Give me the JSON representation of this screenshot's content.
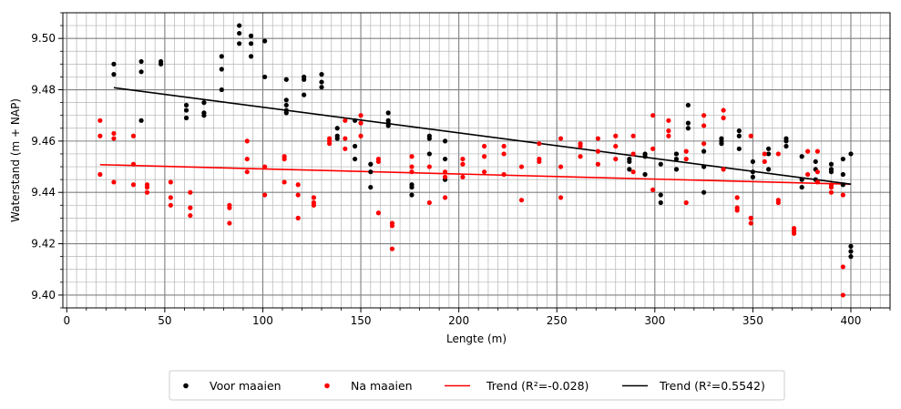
{
  "chart_data": {
    "type": "scatter",
    "xlabel": "Lengte (m)",
    "ylabel": "Waterstand (m + NAP)",
    "xlim": [
      -2,
      420
    ],
    "ylim": [
      9.395,
      9.51
    ],
    "xticks": [
      0,
      50,
      100,
      150,
      200,
      250,
      300,
      350,
      400
    ],
    "xtick_labels": [
      "0",
      "50",
      "100",
      "150",
      "200",
      "250",
      "300",
      "350",
      "400"
    ],
    "yticks": [
      9.4,
      9.42,
      9.44,
      9.46,
      9.48,
      9.5
    ],
    "ytick_labels": [
      "9.40",
      "9.42",
      "9.44",
      "9.46",
      "9.48",
      "9.50"
    ],
    "x_minor_step": 5,
    "y_minor_step": 0.005,
    "grid": true,
    "legend_position": "bottom-center",
    "series": [
      {
        "name": "Voor maaien",
        "kind": "points",
        "color": "#000000",
        "points": [
          [
            24,
            9.49
          ],
          [
            24,
            9.486
          ],
          [
            38,
            9.491
          ],
          [
            38,
            9.487
          ],
          [
            38,
            9.468
          ],
          [
            48,
            9.491
          ],
          [
            48,
            9.49
          ],
          [
            61,
            9.474
          ],
          [
            61,
            9.472
          ],
          [
            61,
            9.469
          ],
          [
            70,
            9.475
          ],
          [
            70,
            9.471
          ],
          [
            70,
            9.47
          ],
          [
            79,
            9.493
          ],
          [
            79,
            9.488
          ],
          [
            79,
            9.48
          ],
          [
            88,
            9.505
          ],
          [
            88,
            9.502
          ],
          [
            88,
            9.498
          ],
          [
            94,
            9.501
          ],
          [
            94,
            9.498
          ],
          [
            94,
            9.493
          ],
          [
            101,
            9.499
          ],
          [
            101,
            9.485
          ],
          [
            112,
            9.484
          ],
          [
            112,
            9.476
          ],
          [
            112,
            9.474
          ],
          [
            112,
            9.472
          ],
          [
            112,
            9.471
          ],
          [
            121,
            9.485
          ],
          [
            121,
            9.484
          ],
          [
            121,
            9.478
          ],
          [
            130,
            9.486
          ],
          [
            130,
            9.483
          ],
          [
            130,
            9.481
          ],
          [
            138,
            9.465
          ],
          [
            138,
            9.462
          ],
          [
            138,
            9.461
          ],
          [
            147,
            9.468
          ],
          [
            147,
            9.458
          ],
          [
            147,
            9.453
          ],
          [
            155,
            9.451
          ],
          [
            155,
            9.448
          ],
          [
            155,
            9.442
          ],
          [
            164,
            9.471
          ],
          [
            164,
            9.468
          ],
          [
            164,
            9.467
          ],
          [
            164,
            9.466
          ],
          [
            176,
            9.443
          ],
          [
            176,
            9.442
          ],
          [
            176,
            9.439
          ],
          [
            185,
            9.462
          ],
          [
            185,
            9.461
          ],
          [
            185,
            9.455
          ],
          [
            193,
            9.46
          ],
          [
            193,
            9.453
          ],
          [
            193,
            9.445
          ],
          [
            287,
            9.453
          ],
          [
            287,
            9.452
          ],
          [
            287,
            9.449
          ],
          [
            295,
            9.455
          ],
          [
            295,
            9.454
          ],
          [
            295,
            9.447
          ],
          [
            303,
            9.451
          ],
          [
            303,
            9.439
          ],
          [
            303,
            9.436
          ],
          [
            311,
            9.455
          ],
          [
            311,
            9.453
          ],
          [
            311,
            9.449
          ],
          [
            317,
            9.474
          ],
          [
            317,
            9.467
          ],
          [
            317,
            9.465
          ],
          [
            325,
            9.456
          ],
          [
            325,
            9.45
          ],
          [
            325,
            9.44
          ],
          [
            334,
            9.461
          ],
          [
            334,
            9.46
          ],
          [
            334,
            9.459
          ],
          [
            343,
            9.464
          ],
          [
            343,
            9.462
          ],
          [
            343,
            9.457
          ],
          [
            350,
            9.452
          ],
          [
            350,
            9.448
          ],
          [
            350,
            9.446
          ],
          [
            358,
            9.457
          ],
          [
            358,
            9.455
          ],
          [
            358,
            9.449
          ],
          [
            367,
            9.461
          ],
          [
            367,
            9.46
          ],
          [
            367,
            9.458
          ],
          [
            375,
            9.454
          ],
          [
            375,
            9.445
          ],
          [
            375,
            9.442
          ],
          [
            382,
            9.452
          ],
          [
            382,
            9.449
          ],
          [
            382,
            9.445
          ],
          [
            390,
            9.451
          ],
          [
            390,
            9.449
          ],
          [
            390,
            9.448
          ],
          [
            396,
            9.453
          ],
          [
            396,
            9.447
          ],
          [
            396,
            9.443
          ],
          [
            400,
            9.455
          ],
          [
            400,
            9.419
          ],
          [
            400,
            9.417
          ],
          [
            400,
            9.415
          ]
        ]
      },
      {
        "name": "Na maaien",
        "kind": "points",
        "color": "#ff0000",
        "points": [
          [
            17,
            9.468
          ],
          [
            17,
            9.462
          ],
          [
            17,
            9.447
          ],
          [
            24,
            9.463
          ],
          [
            24,
            9.461
          ],
          [
            24,
            9.444
          ],
          [
            34,
            9.462
          ],
          [
            34,
            9.451
          ],
          [
            34,
            9.443
          ],
          [
            41,
            9.443
          ],
          [
            41,
            9.442
          ],
          [
            41,
            9.44
          ],
          [
            53,
            9.444
          ],
          [
            53,
            9.438
          ],
          [
            53,
            9.435
          ],
          [
            63,
            9.44
          ],
          [
            63,
            9.434
          ],
          [
            63,
            9.431
          ],
          [
            83,
            9.435
          ],
          [
            83,
            9.434
          ],
          [
            83,
            9.428
          ],
          [
            92,
            9.46
          ],
          [
            92,
            9.453
          ],
          [
            92,
            9.448
          ],
          [
            101,
            9.45
          ],
          [
            101,
            9.439
          ],
          [
            111,
            9.454
          ],
          [
            111,
            9.453
          ],
          [
            111,
            9.444
          ],
          [
            118,
            9.443
          ],
          [
            118,
            9.439
          ],
          [
            118,
            9.43
          ],
          [
            126,
            9.438
          ],
          [
            126,
            9.436
          ],
          [
            126,
            9.435
          ],
          [
            134,
            9.461
          ],
          [
            134,
            9.46
          ],
          [
            134,
            9.459
          ],
          [
            142,
            9.468
          ],
          [
            142,
            9.461
          ],
          [
            142,
            9.457
          ],
          [
            150,
            9.47
          ],
          [
            150,
            9.467
          ],
          [
            150,
            9.462
          ],
          [
            159,
            9.453
          ],
          [
            159,
            9.452
          ],
          [
            159,
            9.432
          ],
          [
            166,
            9.428
          ],
          [
            166,
            9.427
          ],
          [
            166,
            9.418
          ],
          [
            176,
            9.454
          ],
          [
            176,
            9.45
          ],
          [
            176,
            9.448
          ],
          [
            185,
            9.45
          ],
          [
            185,
            9.436
          ],
          [
            193,
            9.448
          ],
          [
            193,
            9.446
          ],
          [
            193,
            9.438
          ],
          [
            202,
            9.453
          ],
          [
            202,
            9.451
          ],
          [
            202,
            9.446
          ],
          [
            213,
            9.458
          ],
          [
            213,
            9.454
          ],
          [
            213,
            9.448
          ],
          [
            223,
            9.458
          ],
          [
            223,
            9.455
          ],
          [
            223,
            9.447
          ],
          [
            232,
            9.45
          ],
          [
            232,
            9.437
          ],
          [
            241,
            9.459
          ],
          [
            241,
            9.453
          ],
          [
            241,
            9.452
          ],
          [
            252,
            9.461
          ],
          [
            252,
            9.45
          ],
          [
            252,
            9.438
          ],
          [
            262,
            9.459
          ],
          [
            262,
            9.458
          ],
          [
            262,
            9.454
          ],
          [
            271,
            9.461
          ],
          [
            271,
            9.456
          ],
          [
            271,
            9.451
          ],
          [
            280,
            9.462
          ],
          [
            280,
            9.458
          ],
          [
            280,
            9.453
          ],
          [
            289,
            9.462
          ],
          [
            289,
            9.455
          ],
          [
            289,
            9.448
          ],
          [
            299,
            9.47
          ],
          [
            299,
            9.457
          ],
          [
            299,
            9.441
          ],
          [
            307,
            9.468
          ],
          [
            307,
            9.464
          ],
          [
            307,
            9.462
          ],
          [
            316,
            9.456
          ],
          [
            316,
            9.453
          ],
          [
            316,
            9.436
          ],
          [
            325,
            9.47
          ],
          [
            325,
            9.466
          ],
          [
            325,
            9.459
          ],
          [
            335,
            9.472
          ],
          [
            335,
            9.469
          ],
          [
            335,
            9.449
          ],
          [
            342,
            9.438
          ],
          [
            342,
            9.434
          ],
          [
            342,
            9.433
          ],
          [
            349,
            9.462
          ],
          [
            349,
            9.43
          ],
          [
            349,
            9.428
          ],
          [
            356,
            9.455
          ],
          [
            356,
            9.452
          ],
          [
            363,
            9.455
          ],
          [
            363,
            9.437
          ],
          [
            363,
            9.436
          ],
          [
            371,
            9.426
          ],
          [
            371,
            9.425
          ],
          [
            371,
            9.424
          ],
          [
            378,
            9.456
          ],
          [
            378,
            9.447
          ],
          [
            383,
            9.456
          ],
          [
            383,
            9.448
          ],
          [
            383,
            9.444
          ],
          [
            390,
            9.443
          ],
          [
            390,
            9.442
          ],
          [
            390,
            9.44
          ],
          [
            396,
            9.439
          ],
          [
            396,
            9.411
          ],
          [
            396,
            9.4
          ]
        ]
      },
      {
        "name": "Trend (R²=-0.028)",
        "kind": "line",
        "color": "#ff0000",
        "points": [
          [
            17,
            9.4508
          ],
          [
            400,
            9.4432
          ]
        ]
      },
      {
        "name": "Trend (R²=0.5542)",
        "kind": "line",
        "color": "#000000",
        "points": [
          [
            24,
            9.4808
          ],
          [
            400,
            9.4432
          ]
        ]
      }
    ]
  }
}
